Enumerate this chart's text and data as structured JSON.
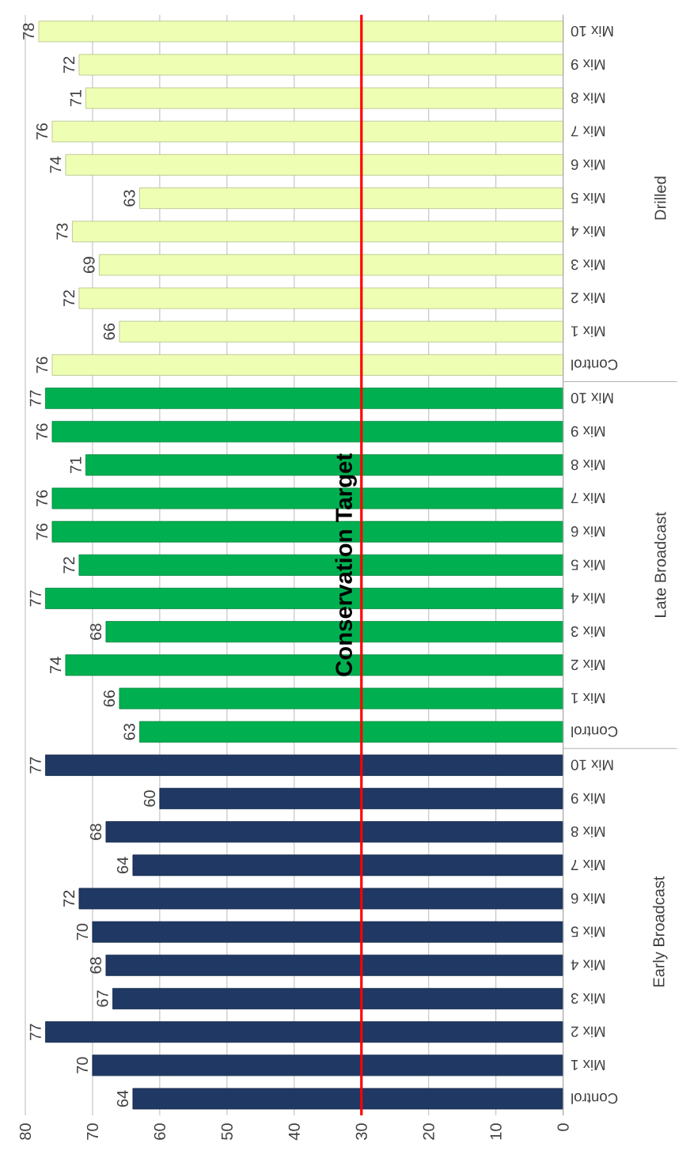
{
  "chart_data": {
    "type": "bar",
    "orientation": "horizontal",
    "categories": [
      "Mix 10",
      "Mix 9",
      "Mix 8",
      "Mix 7",
      "Mix 6",
      "Mix 5",
      "Mix 4",
      "Mix 3",
      "Mix 2",
      "Mix 1",
      "Control",
      "Mix 10",
      "Mix 9",
      "Mix 8",
      "Mix 7",
      "Mix 6",
      "Mix 5",
      "Mix 4",
      "Mix 3",
      "Mix 2",
      "Mix 1",
      "Control",
      "Mix 10",
      "Mix 9",
      "Mix 8",
      "Mix 7",
      "Mix 6",
      "Mix 5",
      "Mix 4",
      "Mix 3",
      "Mix 2",
      "Mix 1",
      "Control"
    ],
    "values": [
      78,
      72,
      71,
      76,
      74,
      63,
      73,
      69,
      72,
      66,
      76,
      77,
      76,
      71,
      76,
      76,
      72,
      77,
      68,
      74,
      66,
      63,
      77,
      60,
      68,
      64,
      72,
      70,
      68,
      67,
      77,
      70,
      64
    ],
    "colors": [
      "#eeffb4",
      "#eeffb4",
      "#eeffb4",
      "#eeffb4",
      "#eeffb4",
      "#eeffb4",
      "#eeffb4",
      "#eeffb4",
      "#eeffb4",
      "#eeffb4",
      "#eeffb4",
      "#00b050",
      "#00b050",
      "#00b050",
      "#00b050",
      "#00b050",
      "#00b050",
      "#00b050",
      "#00b050",
      "#00b050",
      "#00b050",
      "#00b050",
      "#1f3864",
      "#1f3864",
      "#1f3864",
      "#1f3864",
      "#1f3864",
      "#1f3864",
      "#1f3864",
      "#1f3864",
      "#1f3864",
      "#1f3864",
      "#1f3864"
    ],
    "xlim": [
      80,
      0
    ],
    "xticks": [
      0,
      10,
      20,
      30,
      40,
      50,
      60,
      70,
      80
    ],
    "grid": "x",
    "data_labels": true,
    "ref_lines": [
      {
        "axis": "x",
        "value": 30,
        "label": "Conservation Target",
        "color": "#ff0000"
      }
    ],
    "annotations": [
      "Drilled",
      "Late Broadcast",
      "Early Broadcast"
    ]
  }
}
